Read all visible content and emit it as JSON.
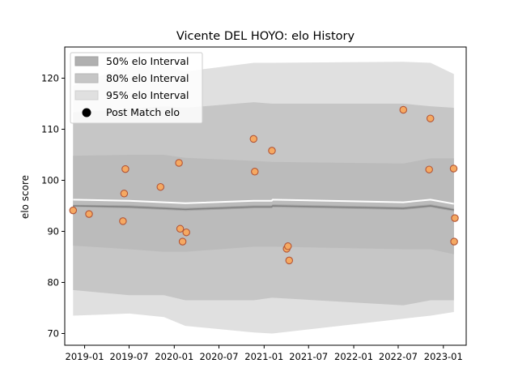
{
  "chart_data": {
    "type": "scatter",
    "title": "Vicente DEL HOYO: elo History",
    "xlabel": "",
    "ylabel": "elo score",
    "xlim": [
      "2018-10-12",
      "2023-04-04"
    ],
    "ylim": [
      67.7,
      126.1
    ],
    "xticks": [
      "2019-01",
      "2019-07",
      "2020-01",
      "2020-07",
      "2021-01",
      "2021-07",
      "2022-01",
      "2022-07",
      "2023-01"
    ],
    "yticks": [
      70,
      80,
      90,
      100,
      110,
      120
    ],
    "grid": false,
    "legend_position": "top-left",
    "legend": [
      {
        "label": "50% elo Interval",
        "kind": "band",
        "color": "#b0b0b0"
      },
      {
        "label": "80% elo Interval",
        "kind": "band",
        "color": "#c6c6c6"
      },
      {
        "label": "95% elo Interval",
        "kind": "band",
        "color": "#e0e0e0"
      },
      {
        "label": "Post Match elo",
        "kind": "marker",
        "color": "#000000"
      }
    ],
    "colors": {
      "band_50": "#b0b0b0",
      "band_80": "#c6c6c6",
      "band_95": "#e0e0e0",
      "mean_line": "#808080",
      "point_fill": "#f5a962",
      "point_edge": "#b25537"
    },
    "intervals": [
      {
        "x": "2018-11-15",
        "mean": 95.0,
        "band_50": [
          94.8,
          95.2
        ],
        "band_80": [
          87.2,
          104.8
        ],
        "band_95": [
          78.5,
          113.3
        ],
        "band_99": [
          73.5,
          118.5
        ]
      },
      {
        "x": "2019-07-01",
        "mean": 94.8,
        "band_50": [
          94.5,
          95.1
        ],
        "band_80": [
          86.5,
          105.0
        ],
        "band_95": [
          77.5,
          114.0
        ],
        "band_99": [
          73.9,
          122.5
        ]
      },
      {
        "x": "2019-11-20",
        "mean": 94.5,
        "band_50": [
          94.2,
          94.8
        ],
        "band_80": [
          86.0,
          105.0
        ],
        "band_95": [
          77.5,
          114.5
        ],
        "band_99": [
          73.2,
          122.7
        ]
      },
      {
        "x": "2020-02-15",
        "mean": 94.3,
        "band_50": [
          94.0,
          94.6
        ],
        "band_80": [
          86.0,
          104.4
        ],
        "band_95": [
          76.5,
          114.2
        ],
        "band_99": [
          71.5,
          121.3
        ]
      },
      {
        "x": "2020-11-20",
        "mean": 94.8,
        "band_50": [
          94.5,
          95.1
        ],
        "band_80": [
          87.0,
          103.8
        ],
        "band_95": [
          76.5,
          115.3
        ],
        "band_99": [
          70.2,
          123.0
        ]
      },
      {
        "x": "2021-02-01",
        "mean": 94.8,
        "band_50": [
          94.5,
          95.1
        ],
        "band_80": [
          87.0,
          103.6
        ],
        "band_95": [
          77.0,
          115.0
        ],
        "band_99": [
          70.0,
          123.0
        ]
      },
      {
        "x": "2021-02-05",
        "mean": 95.0,
        "band_50": [
          94.7,
          95.3
        ],
        "band_80": [
          87.0,
          103.6
        ],
        "band_95": [
          77.0,
          115.0
        ],
        "band_99": [
          70.0,
          123.0
        ]
      },
      {
        "x": "2022-07-22",
        "mean": 94.5,
        "band_50": [
          94.2,
          94.8
        ],
        "band_80": [
          86.5,
          103.3
        ],
        "band_95": [
          75.5,
          115.0
        ],
        "band_99": [
          72.9,
          123.2
        ]
      },
      {
        "x": "2022-11-10",
        "mean": 95.0,
        "band_50": [
          94.7,
          95.3
        ],
        "band_80": [
          86.5,
          104.3
        ],
        "band_95": [
          76.5,
          114.5
        ],
        "band_99": [
          73.5,
          123.0
        ]
      },
      {
        "x": "2023-02-13",
        "mean": 94.2,
        "band_50": [
          93.9,
          94.5
        ],
        "band_80": [
          85.5,
          104.3
        ],
        "band_95": [
          76.5,
          114.2
        ],
        "band_99": [
          74.2,
          120.8
        ]
      }
    ],
    "points": [
      {
        "x": "2018-11-15",
        "y": 94.1
      },
      {
        "x": "2019-01-19",
        "y": 93.4
      },
      {
        "x": "2019-06-06",
        "y": 92.0
      },
      {
        "x": "2019-06-11",
        "y": 97.4
      },
      {
        "x": "2019-06-16",
        "y": 102.2
      },
      {
        "x": "2019-11-06",
        "y": 98.7
      },
      {
        "x": "2020-01-20",
        "y": 103.4
      },
      {
        "x": "2020-01-25",
        "y": 90.5
      },
      {
        "x": "2020-02-04",
        "y": 88.0
      },
      {
        "x": "2020-02-19",
        "y": 89.8
      },
      {
        "x": "2020-11-19",
        "y": 108.1
      },
      {
        "x": "2020-11-24",
        "y": 101.7
      },
      {
        "x": "2021-02-02",
        "y": 105.8
      },
      {
        "x": "2021-04-03",
        "y": 86.6
      },
      {
        "x": "2021-04-08",
        "y": 87.1
      },
      {
        "x": "2021-04-13",
        "y": 84.3
      },
      {
        "x": "2022-07-22",
        "y": 113.8
      },
      {
        "x": "2022-11-04",
        "y": 102.1
      },
      {
        "x": "2022-11-09",
        "y": 112.1
      },
      {
        "x": "2023-02-12",
        "y": 102.3
      },
      {
        "x": "2023-02-14",
        "y": 88.0
      },
      {
        "x": "2023-02-17",
        "y": 92.6
      }
    ]
  }
}
